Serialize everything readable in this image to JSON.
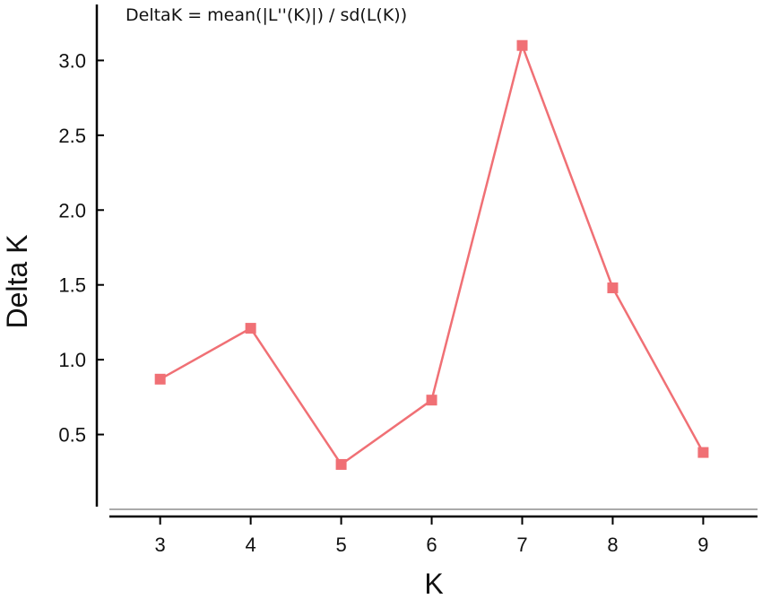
{
  "chart_data": {
    "type": "line",
    "title": "DeltaK = mean(|L''(K)|) / sd(L(K))",
    "xlabel": "K",
    "ylabel": "Delta K",
    "x": [
      3,
      4,
      5,
      6,
      7,
      8,
      9
    ],
    "series": [
      {
        "values": [
          0.87,
          1.21,
          0.3,
          0.73,
          3.1,
          1.48,
          0.38
        ]
      }
    ],
    "xticks": [
      "3",
      "4",
      "5",
      "6",
      "7",
      "8",
      "9"
    ],
    "yticks": [
      "0.5",
      "1.0",
      "1.5",
      "2.0",
      "2.5",
      "3.0"
    ],
    "xlim": [
      2.3,
      9.6
    ],
    "ylim": [
      0,
      3.35
    ],
    "grid": false,
    "colors": {
      "series": "#f07075",
      "axis": "#000000",
      "baseline": "#aaaaaa"
    }
  }
}
